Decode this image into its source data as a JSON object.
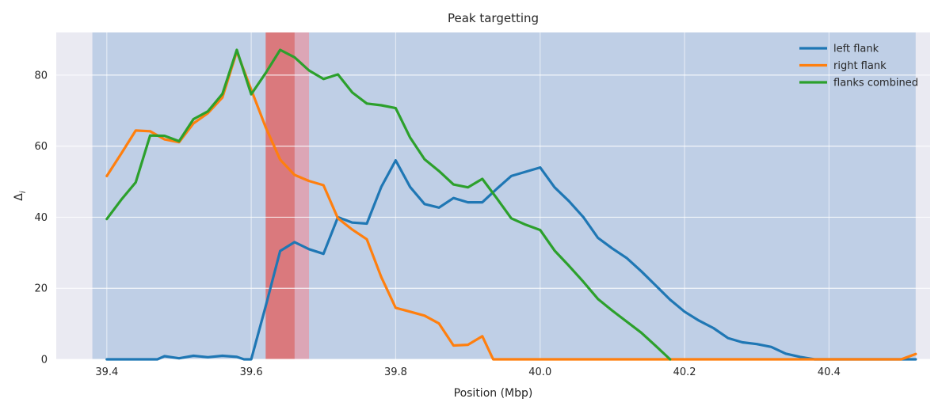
{
  "chart_data": {
    "type": "line",
    "title": "Peak targetting",
    "xlabel": "Position (Mbp)",
    "ylabel": "Δ",
    "ylabel_subscript": "i",
    "xlim": [
      39.33,
      40.54
    ],
    "ylim": [
      0,
      92
    ],
    "xticks": [
      39.4,
      39.6,
      39.8,
      40.0,
      40.2,
      40.4
    ],
    "xtick_labels": [
      "39.4",
      "39.6",
      "39.8",
      "40.0",
      "40.2",
      "40.4"
    ],
    "yticks": [
      0,
      20,
      40,
      60,
      80
    ],
    "ytick_labels": [
      "0",
      "20",
      "40",
      "60",
      "80"
    ],
    "grid": true,
    "legend_position": "top-right",
    "background": "#eaeaf2",
    "spans": [
      {
        "x0": 39.38,
        "x1": 40.52,
        "color": "#6f9fd0",
        "opacity": 0.35
      },
      {
        "x0": 39.62,
        "x1": 39.68,
        "color": "#f08b96",
        "opacity": 0.6
      },
      {
        "x0": 39.62,
        "x1": 39.66,
        "color": "#d9534f",
        "opacity": 0.55
      }
    ],
    "series": [
      {
        "name": "left flank",
        "color": "#1f77b4",
        "x": [
          39.4,
          39.42,
          39.44,
          39.46,
          39.47,
          39.48,
          39.5,
          39.52,
          39.54,
          39.56,
          39.58,
          39.59,
          39.6,
          39.62,
          39.64,
          39.66,
          39.68,
          39.7,
          39.72,
          39.74,
          39.76,
          39.78,
          39.8,
          39.82,
          39.84,
          39.86,
          39.88,
          39.9,
          39.92,
          39.94,
          39.96,
          39.98,
          40.0,
          40.02,
          40.04,
          40.06,
          40.08,
          40.1,
          40.12,
          40.14,
          40.16,
          40.18,
          40.2,
          40.22,
          40.24,
          40.26,
          40.28,
          40.3,
          40.32,
          40.34,
          40.36,
          40.38,
          40.4,
          40.42,
          40.44,
          40.46,
          40.48,
          40.5,
          40.52
        ],
        "y": [
          0,
          0,
          0,
          0,
          0,
          0.9,
          0.3,
          1.0,
          0.6,
          1.0,
          0.7,
          0,
          0,
          15,
          30.5,
          33,
          31,
          29.7,
          40,
          38.5,
          38.2,
          48.5,
          56,
          48.5,
          43.7,
          42.7,
          45.4,
          44.2,
          44.2,
          48,
          51.6,
          52.8,
          54,
          48.4,
          44.5,
          40,
          34.2,
          31.2,
          28.5,
          24.8,
          20.8,
          16.8,
          13.4,
          10.9,
          8.8,
          6,
          4.8,
          4.3,
          3.5,
          1.6,
          0.7,
          0,
          0,
          0,
          0,
          0,
          0,
          0,
          0
        ]
      },
      {
        "name": "right flank",
        "color": "#ff7f0e",
        "x": [
          39.4,
          39.42,
          39.44,
          39.46,
          39.48,
          39.5,
          39.52,
          39.54,
          39.56,
          39.58,
          39.6,
          39.62,
          39.64,
          39.66,
          39.68,
          39.7,
          39.72,
          39.74,
          39.76,
          39.78,
          39.8,
          39.82,
          39.84,
          39.86,
          39.88,
          39.9,
          39.92,
          39.935,
          39.96,
          40.0,
          40.1,
          40.2,
          40.3,
          40.4,
          40.45,
          40.5,
          40.52
        ],
        "y": [
          51.6,
          57.9,
          64.4,
          64.2,
          61.9,
          61.1,
          66.4,
          69.3,
          73.7,
          86.6,
          75.9,
          65.3,
          56.2,
          51.9,
          50.2,
          49,
          39.7,
          36.5,
          33.8,
          23.2,
          14.5,
          13.4,
          12.3,
          10.1,
          3.9,
          4.1,
          6.5,
          0,
          0,
          0,
          0,
          0,
          0,
          0,
          0,
          0,
          1.5
        ]
      },
      {
        "name": "flanks combined",
        "color": "#2ca02c",
        "x": [
          39.4,
          39.42,
          39.44,
          39.46,
          39.48,
          39.5,
          39.52,
          39.54,
          39.56,
          39.58,
          39.6,
          39.62,
          39.64,
          39.66,
          39.68,
          39.7,
          39.72,
          39.74,
          39.76,
          39.78,
          39.8,
          39.82,
          39.84,
          39.86,
          39.88,
          39.9,
          39.92,
          39.94,
          39.96,
          39.98,
          40.0,
          40.02,
          40.04,
          40.06,
          40.08,
          40.1,
          40.12,
          40.14,
          40.16,
          40.18
        ],
        "y": [
          39.5,
          44.9,
          49.8,
          63,
          62.9,
          61.4,
          67.6,
          69.8,
          74.7,
          87.1,
          74.6,
          80.6,
          87.1,
          85,
          81.3,
          78.9,
          80.2,
          75.1,
          72,
          71.5,
          70.7,
          62.4,
          56.3,
          53,
          49.2,
          48.4,
          50.8,
          45.3,
          39.7,
          37.9,
          36.4,
          30.6,
          26.3,
          21.8,
          17,
          13.7,
          10.6,
          7.5,
          3.8,
          0
        ]
      }
    ]
  }
}
